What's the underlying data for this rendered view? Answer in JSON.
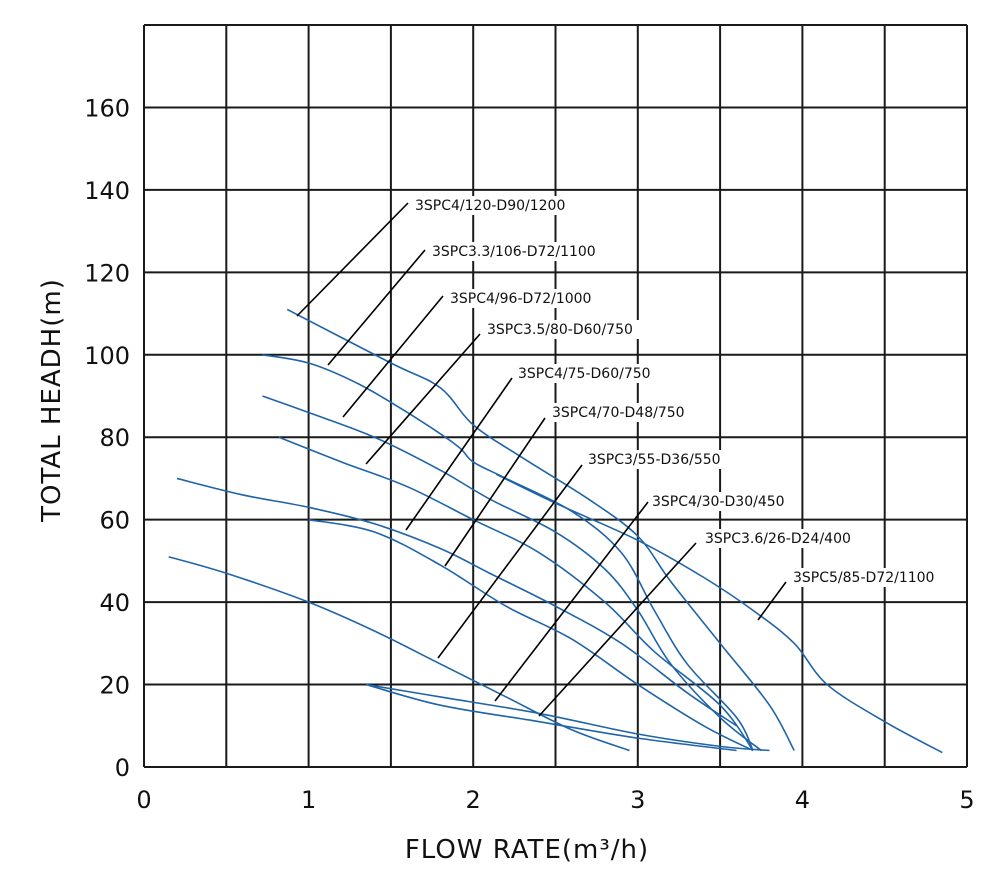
{
  "chart_data": {
    "type": "line",
    "title": "",
    "xlabel": "FLOW RATE(m³/h)",
    "ylabel": "TOTAL HEADH(m)",
    "xlim": [
      0,
      5
    ],
    "ylim": [
      0,
      180
    ],
    "grid": true,
    "x_ticks": [
      "0",
      "1",
      "2",
      "3",
      "4",
      "5"
    ],
    "y_ticks": [
      "0",
      "20",
      "40",
      "60",
      "80",
      "100",
      "120",
      "140",
      "160"
    ],
    "line_color": "#1f64a8",
    "series": [
      {
        "name": "3SPC4/120-D90/1200",
        "points": [
          [
            0.87,
            111
          ],
          [
            1.5,
            98
          ],
          [
            1.8,
            92
          ],
          [
            2.0,
            83
          ],
          [
            2.3,
            75
          ],
          [
            2.7,
            65
          ],
          [
            3.0,
            56
          ],
          [
            3.2,
            45
          ],
          [
            3.5,
            30
          ],
          [
            3.8,
            15
          ],
          [
            3.95,
            4
          ]
        ]
      },
      {
        "name": "3SPC3.3/106-D72/1100",
        "points": [
          [
            0.72,
            100
          ],
          [
            1.0,
            98
          ],
          [
            1.3,
            93
          ],
          [
            1.6,
            86
          ],
          [
            1.9,
            78
          ],
          [
            2.0,
            74
          ],
          [
            2.2,
            70
          ],
          [
            2.6,
            62
          ],
          [
            2.9,
            52
          ],
          [
            3.1,
            38
          ],
          [
            3.3,
            25
          ],
          [
            3.6,
            12
          ],
          [
            3.7,
            4
          ]
        ]
      },
      {
        "name": "3SPC4/96-D72/1000",
        "points": [
          [
            0.72,
            90
          ],
          [
            1.0,
            86
          ],
          [
            1.4,
            80
          ],
          [
            1.8,
            72
          ],
          [
            2.1,
            65
          ],
          [
            2.5,
            57
          ],
          [
            2.8,
            48
          ],
          [
            3.0,
            38
          ],
          [
            3.2,
            25
          ],
          [
            3.5,
            12
          ],
          [
            3.75,
            4
          ]
        ]
      },
      {
        "name": "3SPC3.5/80-D60/750",
        "points": [
          [
            0.82,
            80
          ],
          [
            1.2,
            74
          ],
          [
            1.6,
            68
          ],
          [
            2.0,
            60
          ],
          [
            2.4,
            52
          ],
          [
            2.8,
            40
          ],
          [
            3.1,
            28
          ],
          [
            3.5,
            15
          ],
          [
            3.7,
            4
          ]
        ]
      },
      {
        "name": "3SPC4/75-D60/750",
        "points": [
          [
            0.2,
            70
          ],
          [
            0.6,
            66
          ],
          [
            1.0,
            63
          ],
          [
            1.4,
            59
          ],
          [
            1.8,
            53
          ],
          [
            2.1,
            47
          ],
          [
            2.5,
            39
          ],
          [
            2.9,
            30
          ],
          [
            3.3,
            18
          ],
          [
            3.6,
            10
          ]
        ]
      },
      {
        "name": "3SPC4/70-D48/750",
        "points": [
          [
            1.0,
            60
          ],
          [
            1.4,
            57
          ],
          [
            1.8,
            49
          ],
          [
            2.2,
            39
          ],
          [
            2.6,
            31
          ],
          [
            3.0,
            20
          ],
          [
            3.4,
            10
          ],
          [
            3.7,
            4
          ]
        ]
      },
      {
        "name": "3SPC3/55-D36/550",
        "points": [
          [
            0.15,
            51
          ],
          [
            0.5,
            47
          ],
          [
            1.0,
            40
          ],
          [
            1.4,
            33
          ],
          [
            1.8,
            25
          ],
          [
            2.2,
            17
          ],
          [
            2.6,
            9
          ],
          [
            2.95,
            4
          ]
        ]
      },
      {
        "name": "3SPC4/30-D30/450",
        "points": [
          [
            1.35,
            20
          ],
          [
            1.8,
            17
          ],
          [
            2.4,
            13
          ],
          [
            3.0,
            8
          ],
          [
            3.5,
            5
          ],
          [
            3.8,
            4
          ]
        ]
      },
      {
        "name": "3SPC3.6/26-D24/400",
        "points": [
          [
            1.35,
            20
          ],
          [
            1.8,
            15
          ],
          [
            2.4,
            11
          ],
          [
            3.0,
            7
          ],
          [
            3.6,
            4
          ]
        ]
      },
      {
        "name": "3SPC5/85-D72/1100",
        "points": [
          [
            2.14,
            71
          ],
          [
            2.5,
            64
          ],
          [
            3.0,
            55
          ],
          [
            3.4,
            46
          ],
          [
            3.7,
            38
          ],
          [
            3.95,
            30
          ],
          [
            4.15,
            20
          ],
          [
            4.5,
            11
          ],
          [
            4.85,
            3.5
          ]
        ]
      }
    ]
  }
}
